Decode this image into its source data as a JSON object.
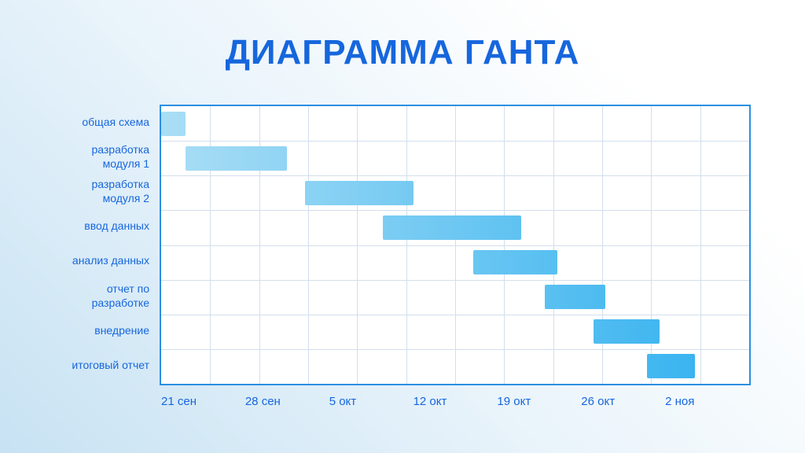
{
  "title": "ДИАГРАММА ГАНТА",
  "colors": {
    "title": "#1666dd",
    "label": "#1666dd",
    "border": "#2b8fe2",
    "grid": "#d2dfec",
    "chart_bg": "#ffffff",
    "bg_deep": "#c7e2f3",
    "bg_mid": "#eaf4fb",
    "bg_light": "#ffffff",
    "bar_start": "#aadef5",
    "bar_end": "#2fb0ef"
  },
  "chart_data": {
    "type": "bar",
    "variant": "gantt",
    "title": "ДИАГРАММА ГАНТА",
    "x_unit": "days (0 = first tick)",
    "tasks": [
      {
        "label": "общая схема",
        "start_day": 0,
        "end_day": 2
      },
      {
        "label": "разработка модуля 1",
        "start_day": 2,
        "end_day": 10.5
      },
      {
        "label": "разработка модуля 2",
        "start_day": 12,
        "end_day": 21
      },
      {
        "label": "ввод данных",
        "start_day": 18.5,
        "end_day": 30
      },
      {
        "label": "анализ данных",
        "start_day": 26,
        "end_day": 33
      },
      {
        "label": "отчет по разработке",
        "start_day": 32,
        "end_day": 37
      },
      {
        "label": "внедрение",
        "start_day": 36,
        "end_day": 41.5
      },
      {
        "label": "итоговый отчет",
        "start_day": 40.5,
        "end_day": 44.5
      }
    ],
    "x_ticks": [
      {
        "day": 0,
        "label": "21 сен"
      },
      {
        "day": 7,
        "label": "28 сен"
      },
      {
        "day": 14,
        "label": "5 окт"
      },
      {
        "day": 21,
        "label": "12 окт"
      },
      {
        "day": 28,
        "label": "19 окт"
      },
      {
        "day": 35,
        "label": "26 окт"
      },
      {
        "day": 42,
        "label": "2 ноя"
      }
    ],
    "axis": {
      "min_day": 0,
      "max_day": 49
    },
    "grid": {
      "columns": 12,
      "rows": 8,
      "visible": true
    },
    "legend": "none"
  }
}
